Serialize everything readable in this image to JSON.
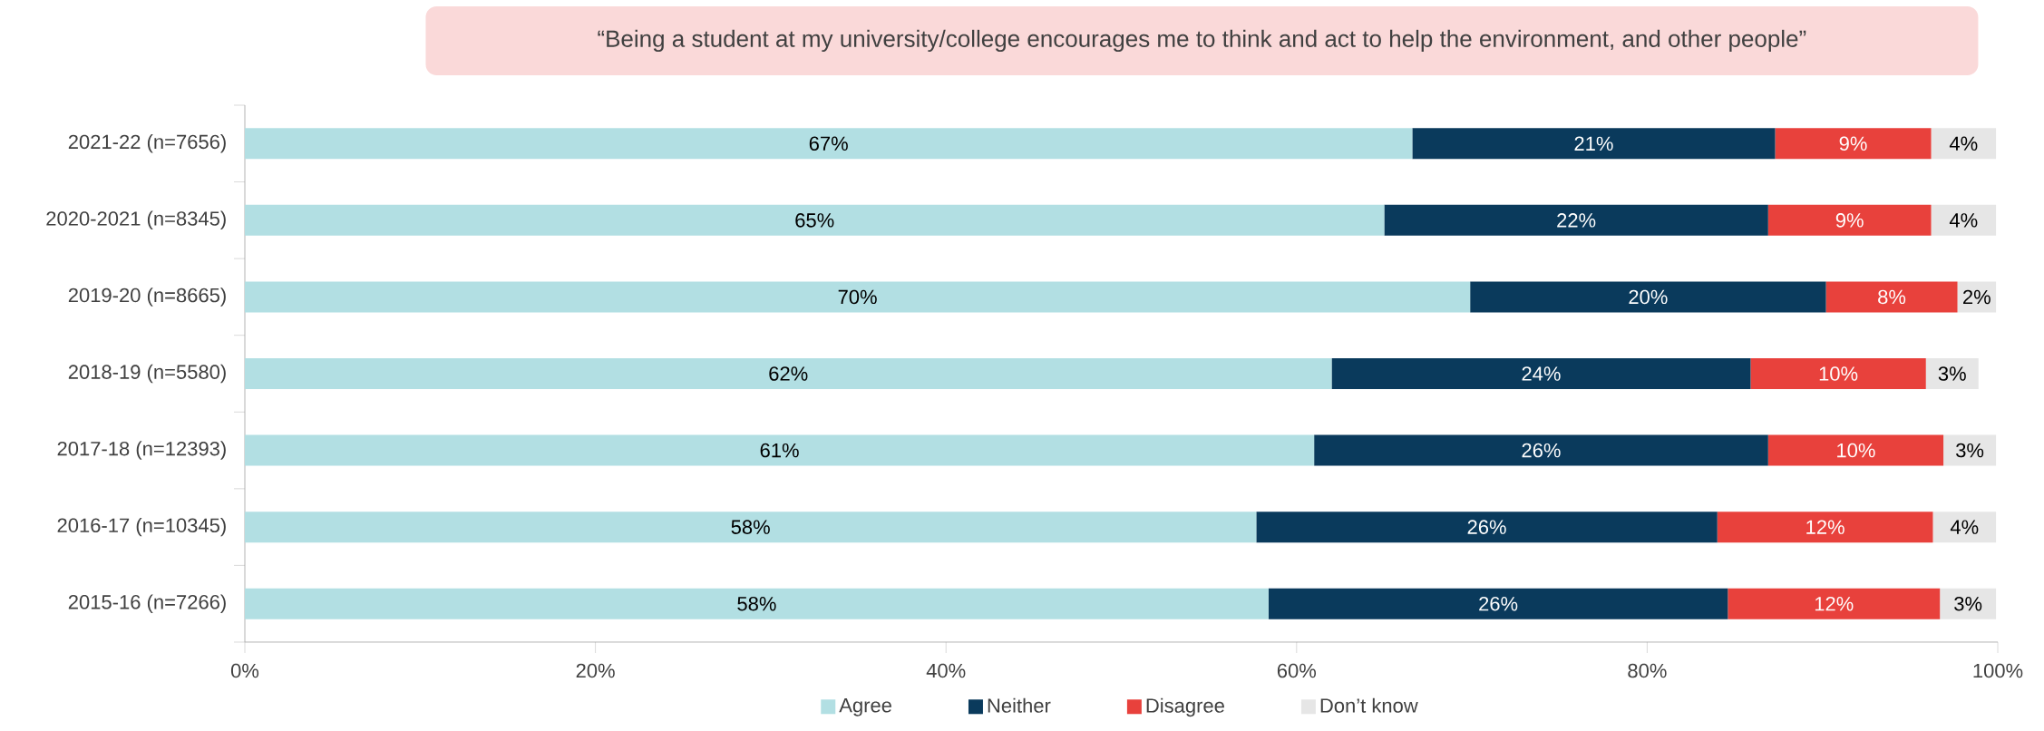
{
  "chart_data": {
    "type": "bar",
    "orientation": "horizontal",
    "stacked": true,
    "title": "“Being a student at my university/college encourages me to think and act to help the environment, and other people”",
    "categories": [
      "2021-22 (n=7656)",
      "2020-2021 (n=8345)",
      "2019-20 (n=8665)",
      "2018-19 (n=5580)",
      "2017-18 (n=12393)",
      "2016-17 (n=10345)",
      "2015-16 (n=7266)"
    ],
    "series": [
      {
        "name": "Agree",
        "color": "#b2dfe3",
        "values": [
          66.6,
          65.0,
          69.9,
          62.0,
          61.0,
          57.7,
          58.4
        ],
        "value_labels": [
          "67%",
          "65%",
          "70%",
          "62%",
          "61%",
          "58%",
          "58%"
        ]
      },
      {
        "name": "Neither",
        "color": "#0a3a5c",
        "values": [
          20.7,
          21.9,
          20.3,
          23.9,
          25.9,
          26.3,
          26.2
        ],
        "value_labels": [
          "21%",
          "22%",
          "20%",
          "24%",
          "26%",
          "26%",
          "26%"
        ]
      },
      {
        "name": "Disagree",
        "color": "#e8413c",
        "values": [
          8.9,
          9.3,
          7.5,
          10.0,
          10.0,
          12.3,
          12.1
        ],
        "value_labels": [
          "9%",
          "9%",
          "8%",
          "10%",
          "10%",
          "12%",
          "12%"
        ]
      },
      {
        "name": "Don’t know",
        "color": "#e6e6e6",
        "values": [
          3.7,
          3.7,
          2.2,
          3.0,
          3.0,
          3.6,
          3.2
        ],
        "value_labels": [
          "4%",
          "4%",
          "2%",
          "3%",
          "3%",
          "4%",
          "3%"
        ]
      }
    ],
    "xlim": [
      0,
      100
    ],
    "xticks": [
      {
        "value": 0,
        "label": "0%"
      },
      {
        "value": 20,
        "label": "20%"
      },
      {
        "value": 40,
        "label": "40%"
      },
      {
        "value": 60,
        "label": "60%"
      },
      {
        "value": 80,
        "label": "80%"
      },
      {
        "value": 100,
        "label": "100%"
      }
    ],
    "legend": "bottom"
  }
}
